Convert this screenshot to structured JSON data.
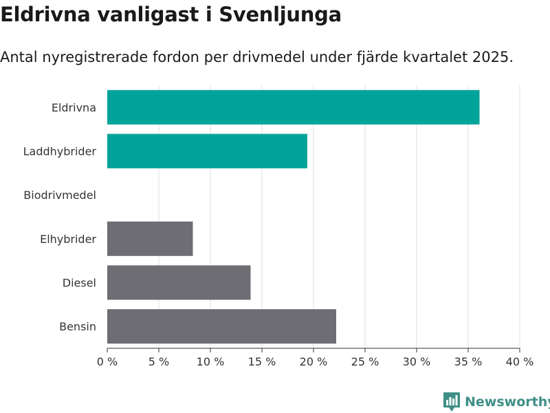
{
  "title": "Eldrivna vanligast i Svenljunga",
  "subtitle": "Antal nyregistrerade fordon per drivmedel under fjärde kvartalet 2025.",
  "brand": {
    "name": "Newsworthy",
    "icon": "bar-chart-speech-bubble-icon",
    "color": "#3f8f87"
  },
  "colors": {
    "highlight": "#00a49a",
    "default": "#6e6d73",
    "grid": "#dddddd",
    "axis": "#333333"
  },
  "chart_data": {
    "type": "bar",
    "orientation": "horizontal",
    "categories": [
      "Eldrivna",
      "Laddhybrider",
      "Biodrivmedel",
      "Elhybrider",
      "Diesel",
      "Bensin"
    ],
    "values": [
      36.1,
      19.4,
      0,
      8.3,
      13.9,
      22.2
    ],
    "highlighted": [
      true,
      true,
      false,
      false,
      false,
      false
    ],
    "xlim": [
      0,
      40
    ],
    "ticks": [
      0,
      5,
      10,
      15,
      20,
      25,
      30,
      35,
      40
    ],
    "tick_labels": [
      "0 %",
      "5 %",
      "10 %",
      "15 %",
      "20 %",
      "25 %",
      "30 %",
      "35 %",
      "40 %"
    ],
    "xlabel": "",
    "ylabel": "",
    "grid": true
  }
}
